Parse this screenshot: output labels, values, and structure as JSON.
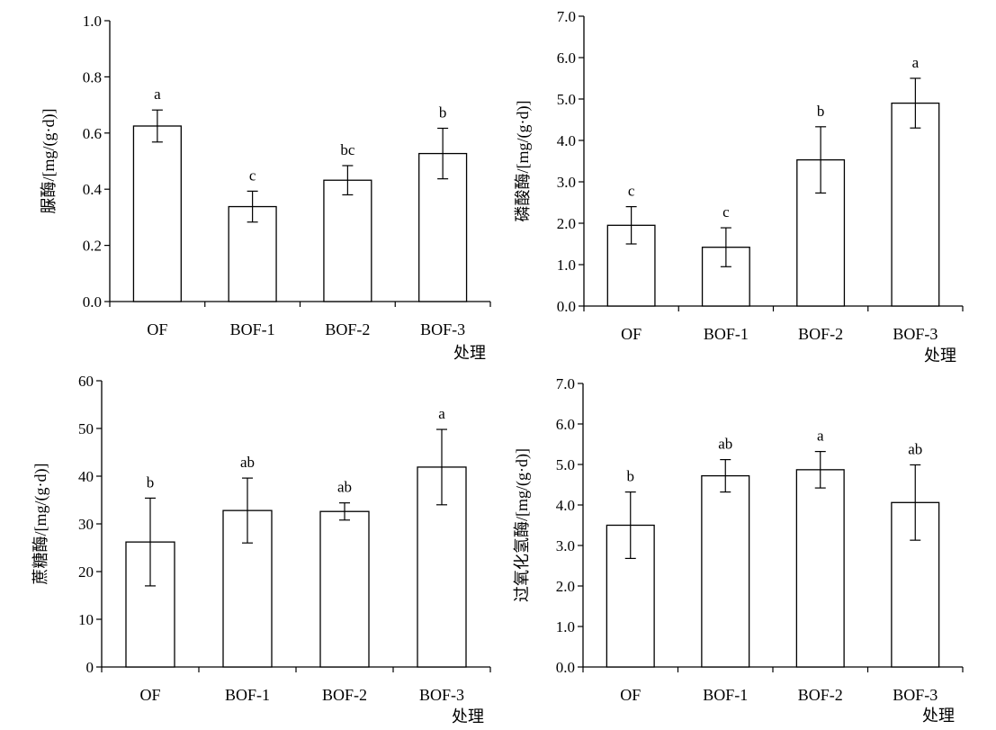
{
  "chart_data": [
    {
      "type": "bar",
      "categories": [
        "OF",
        "BOF-1",
        "BOF-2",
        "BOF-3"
      ],
      "values": [
        0.625,
        0.338,
        0.432,
        0.527
      ],
      "errors": [
        0.057,
        0.055,
        0.052,
        0.09
      ],
      "significance": [
        "a",
        "c",
        "bc",
        "b"
      ],
      "ylabel": "脲酶/[mg/(g·d)]",
      "xlabel": "处理",
      "ylim": [
        0,
        1.0
      ],
      "yticks": [
        "0.0",
        "0.2",
        "0.4",
        "0.6",
        "0.8",
        "1.0"
      ],
      "grid": false,
      "legend": "none"
    },
    {
      "type": "bar",
      "categories": [
        "OF",
        "BOF-1",
        "BOF-2",
        "BOF-3"
      ],
      "values": [
        1.95,
        1.42,
        3.53,
        4.9
      ],
      "errors": [
        0.45,
        0.47,
        0.8,
        0.6
      ],
      "significance": [
        "c",
        "c",
        "b",
        "a"
      ],
      "ylabel": "磷酸酶/[mg/(g·d)]",
      "xlabel": "处理",
      "ylim": [
        0,
        7.0
      ],
      "yticks": [
        "0.0",
        "1.0",
        "2.0",
        "3.0",
        "4.0",
        "5.0",
        "6.0",
        "7.0"
      ],
      "grid": false,
      "legend": "none"
    },
    {
      "type": "bar",
      "categories": [
        "OF",
        "BOF-1",
        "BOF-2",
        "BOF-3"
      ],
      "values": [
        26.2,
        32.8,
        32.6,
        41.9
      ],
      "errors": [
        9.2,
        6.8,
        1.8,
        7.9
      ],
      "significance": [
        "b",
        "ab",
        "ab",
        "a"
      ],
      "ylabel": "蔗糖酶/[mg/(g·d)]",
      "xlabel": "处理",
      "ylim": [
        0,
        60
      ],
      "yticks": [
        "0",
        "10",
        "20",
        "30",
        "40",
        "50",
        "60"
      ],
      "grid": false,
      "legend": "none"
    },
    {
      "type": "bar",
      "categories": [
        "OF",
        "BOF-1",
        "BOF-2",
        "BOF-3"
      ],
      "values": [
        3.5,
        4.72,
        4.87,
        4.06
      ],
      "errors": [
        0.82,
        0.4,
        0.45,
        0.93
      ],
      "significance": [
        "b",
        "ab",
        "a",
        "ab"
      ],
      "ylabel": "过氧化氢酶/[mg/(g·d)]",
      "xlabel": "处理",
      "ylim": [
        0,
        7.0
      ],
      "yticks": [
        "0.0",
        "1.0",
        "2.0",
        "3.0",
        "4.0",
        "5.0",
        "6.0",
        "7.0"
      ],
      "grid": false,
      "legend": "none"
    }
  ]
}
